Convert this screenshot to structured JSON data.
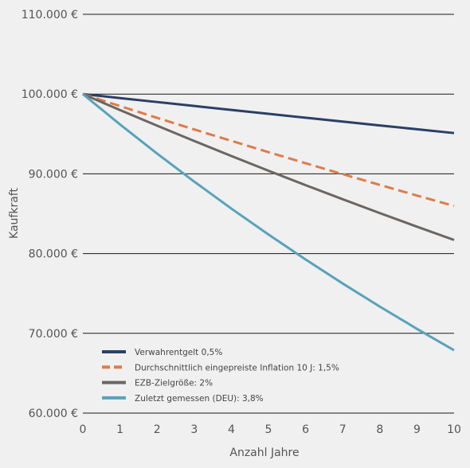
{
  "chart_data": {
    "type": "line",
    "title": "",
    "xlabel": "Anzahl Jahre",
    "ylabel": "Kaufkraft",
    "xlim": [
      0,
      10
    ],
    "ylim": [
      60000,
      110000
    ],
    "x_ticks": [
      "0",
      "1",
      "2",
      "3",
      "4",
      "5",
      "6",
      "7",
      "8",
      "9",
      "10"
    ],
    "y_ticks": [
      {
        "value": 60000,
        "label": "60.000 €"
      },
      {
        "value": 70000,
        "label": "70.000 €"
      },
      {
        "value": 80000,
        "label": "80.000 €"
      },
      {
        "value": 90000,
        "label": "90.000 €"
      },
      {
        "value": 100000,
        "label": "100.000 €"
      },
      {
        "value": 110000,
        "label": "110.000 €"
      }
    ],
    "grid": "horizontal",
    "legend_position": "bottom-left",
    "x": [
      0,
      1,
      2,
      3,
      4,
      5,
      6,
      7,
      8,
      9,
      10
    ],
    "series": [
      {
        "name": "Verwahrentgelt 0,5%",
        "color": "#2b3f66",
        "style": "solid",
        "values": [
          100000,
          99500,
          99003,
          98507,
          98015,
          97525,
          97037,
          96552,
          96069,
          95589,
          95111
        ]
      },
      {
        "name": "Durchschnittlich eingepreiste Inflation 10 J: 1,5%",
        "color": "#e07b48",
        "style": "dashed",
        "values": [
          100000,
          98500,
          97023,
          95567,
          94133,
          92721,
          91331,
          89961,
          88611,
          87282,
          85973
        ]
      },
      {
        "name": "EZB-Zielgröße: 2%",
        "color": "#6b6663",
        "style": "solid",
        "values": [
          100000,
          98000,
          96040,
          94119,
          92237,
          90392,
          88584,
          86813,
          85076,
          83375,
          81707
        ]
      },
      {
        "name": "Zuletzt gemessen (DEU): 3,8%",
        "color": "#58a3bb",
        "style": "solid",
        "values": [
          100000,
          96200,
          92544,
          89028,
          85645,
          82390,
          79259,
          76248,
          73350,
          70563,
          67882
        ]
      }
    ]
  }
}
